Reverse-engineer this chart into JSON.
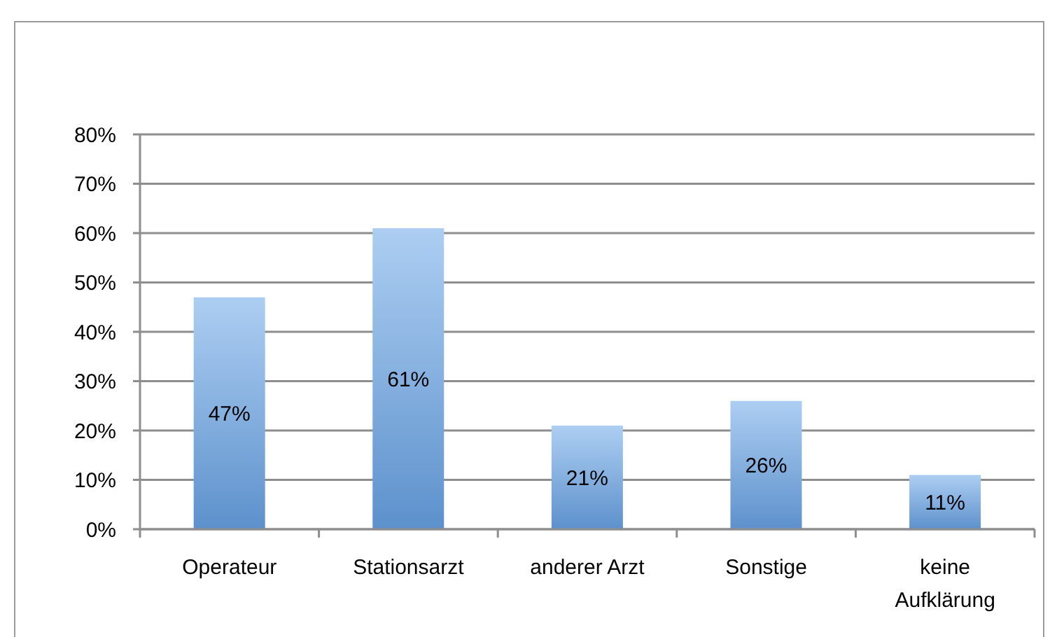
{
  "chart_data": {
    "type": "bar",
    "categories": [
      "Operateur",
      "Stationsarzt",
      "anderer Arzt",
      "Sonstige",
      "keine\nAufklärung"
    ],
    "values": [
      47,
      61,
      21,
      26,
      11
    ],
    "value_labels": [
      "47%",
      "61%",
      "21%",
      "26%",
      "11%"
    ],
    "color": "#6aa5e8",
    "ylim": [
      0,
      80
    ],
    "yticks": [
      {
        "value": 0,
        "label": "0%"
      },
      {
        "value": 10,
        "label": "10%"
      },
      {
        "value": 20,
        "label": "20%"
      },
      {
        "value": 30,
        "label": "30%"
      },
      {
        "value": 40,
        "label": "40%"
      },
      {
        "value": 50,
        "label": "50%"
      },
      {
        "value": 60,
        "label": "60%"
      },
      {
        "value": 70,
        "label": "70%"
      },
      {
        "value": 80,
        "label": "80%"
      }
    ],
    "grid": "y"
  }
}
